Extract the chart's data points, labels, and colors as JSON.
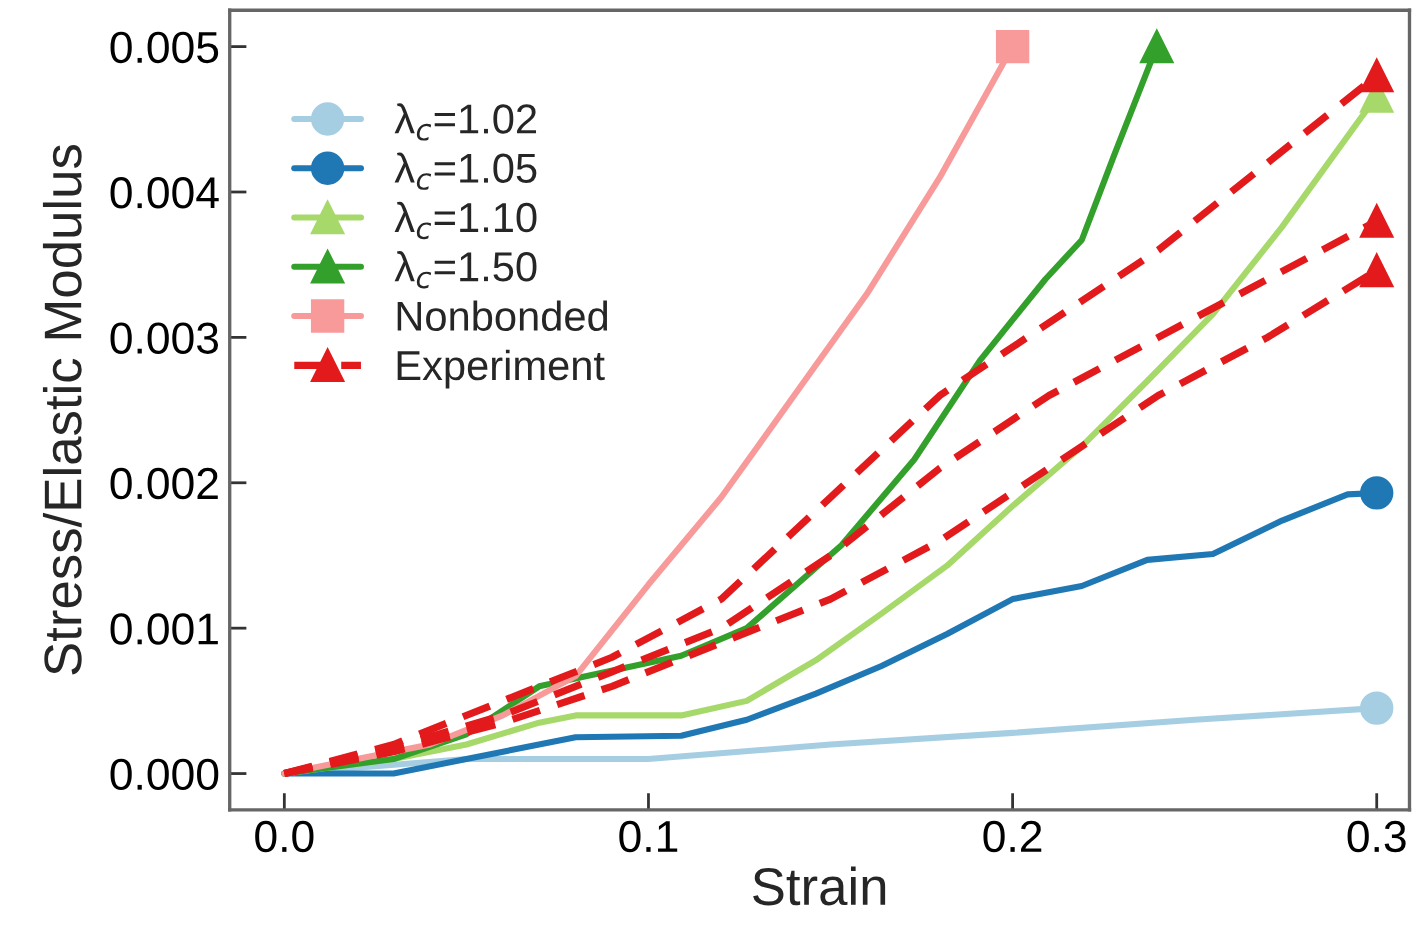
{
  "chart_data": {
    "type": "line",
    "xlabel": "Strain",
    "ylabel": "Stress/Elastic Modulus",
    "xlim": [
      -0.015,
      0.309
    ],
    "xticks": [
      {
        "value": 0,
        "label": "0.0"
      },
      0.1,
      0.2,
      0.3
    ],
    "ylim": [
      -0.00025,
      0.00525
    ],
    "yticks": [
      {
        "value": 0,
        "label": "0.000"
      },
      0.001,
      0.002,
      0.003,
      0.004,
      0.005
    ],
    "grid": false,
    "legend": "top left",
    "series": [
      {
        "name": "λ$_{c}$=1.02",
        "color": "#a6cee3",
        "line_style": "solid",
        "x": [
          0,
          0.05,
          0.1,
          0.15,
          0.2,
          0.25,
          0.3
        ],
        "values": [
          0,
          0.0001,
          0.0001,
          0.0002,
          0.00028,
          0.00037,
          0.00045
        ]
      },
      {
        "type": "scatter",
        "color": "#a6cee3",
        "marker": "circle",
        "x": [
          0.3
        ],
        "values": [
          0.00045
        ]
      },
      {
        "name": "λ$_{c}$=1.05",
        "color": "#1f78b4",
        "line_style": "solid",
        "x": [
          0,
          0.03,
          0.05,
          0.08,
          0.109,
          0.127,
          0.146,
          0.164,
          0.182,
          0.2,
          0.219,
          0.237,
          0.255,
          0.274,
          0.292,
          0.3
        ],
        "values": [
          0,
          0,
          0.0001,
          0.00025,
          0.00026,
          0.00037,
          0.00055,
          0.00074,
          0.00096,
          0.0012,
          0.00129,
          0.00147,
          0.00151,
          0.00174,
          0.00192,
          0.00193
        ]
      },
      {
        "type": "scatter",
        "color": "#1f78b4",
        "marker": "circle",
        "x": [
          0.3
        ],
        "values": [
          0.00193
        ]
      },
      {
        "name": "λ$_{c}$=1.10",
        "color": "#a6d96a",
        "line_style": "solid",
        "x": [
          0,
          0.03,
          0.05,
          0.07,
          0.08,
          0.109,
          0.127,
          0.146,
          0.164,
          0.182,
          0.2,
          0.219,
          0.237,
          0.255,
          0.274,
          0.3
        ],
        "values": [
          0,
          0.0001,
          0.0002,
          0.00035,
          0.0004,
          0.0004,
          0.0005,
          0.00078,
          0.0011,
          0.00143,
          0.00184,
          0.00225,
          0.0027,
          0.00316,
          0.00376,
          0.00466
        ]
      },
      {
        "type": "scatter",
        "color": "#a6d96a",
        "marker": "triangle",
        "x": [
          0.3
        ],
        "values": [
          0.00466
        ]
      },
      {
        "name": "λ$_{c}$=1.50",
        "color": "#33a02c",
        "line_style": "solid",
        "x": [
          0,
          0.03,
          0.05,
          0.07,
          0.109,
          0.127,
          0.153,
          0.173,
          0.191,
          0.209,
          0.219,
          0.228,
          0.2396
        ],
        "values": [
          0,
          0.0001,
          0.00027,
          0.0006,
          0.00081,
          0.001,
          0.00157,
          0.00216,
          0.00284,
          0.0034,
          0.00367,
          0.00426,
          0.005
        ]
      },
      {
        "type": "scatter",
        "color": "#33a02c",
        "marker": "triangle",
        "x": [
          0.2396
        ],
        "values": [
          0.005
        ]
      },
      {
        "name": "Nonbonded",
        "color": "#f89a9a",
        "line_style": "solid",
        "x": [
          0,
          0.02,
          0.04,
          0.06,
          0.08,
          0.1,
          0.12,
          0.14,
          0.16,
          0.18,
          0.2
        ],
        "values": [
          0,
          0.0001,
          0.0002,
          0.0004,
          0.00067,
          0.0013,
          0.0019,
          0.0026,
          0.0033,
          0.0041,
          0.005
        ]
      },
      {
        "type": "scatter",
        "color": "#f89a9a",
        "marker": "square",
        "x": [
          0.2
        ],
        "values": [
          0.005
        ]
      },
      {
        "name": "Experiment",
        "color": "#e31a1c",
        "line_style": "dashed",
        "x": [
          0,
          0.03,
          0.06,
          0.09,
          0.12,
          0.15,
          0.18,
          0.21,
          0.24,
          0.27,
          0.3
        ],
        "values": [
          0,
          0.0002,
          0.0005,
          0.0008,
          0.0012,
          0.0019,
          0.0026,
          0.0031,
          0.0036,
          0.0042,
          0.0048
        ]
      },
      {
        "type": "scatter",
        "color": "#e31a1c",
        "marker": "triangle",
        "x": [
          0.3
        ],
        "values": [
          0.0048
        ]
      },
      {
        "color": "#e31a1c",
        "line_style": "dashed",
        "x": [
          0,
          0.03,
          0.06,
          0.09,
          0.12,
          0.15,
          0.18,
          0.21,
          0.24,
          0.27,
          0.3
        ],
        "values": [
          0,
          0.00018,
          0.0004,
          0.0007,
          0.001,
          0.0015,
          0.0021,
          0.0026,
          0.003,
          0.0034,
          0.0038
        ]
      },
      {
        "type": "scatter",
        "color": "#e31a1c",
        "marker": "triangle",
        "x": [
          0.3
        ],
        "values": [
          0.0038
        ]
      },
      {
        "color": "#e31a1c",
        "line_style": "dashed",
        "x": [
          0,
          0.03,
          0.06,
          0.09,
          0.12,
          0.15,
          0.18,
          0.21,
          0.24,
          0.27,
          0.3
        ],
        "values": [
          0,
          0.00015,
          0.00035,
          0.0006,
          0.0009,
          0.0012,
          0.0016,
          0.0021,
          0.0026,
          0.003,
          0.00346
        ]
      },
      {
        "type": "scatter",
        "color": "#e31a1c",
        "marker": "triangle",
        "x": [
          0.3
        ],
        "values": [
          0.00346
        ]
      }
    ]
  }
}
